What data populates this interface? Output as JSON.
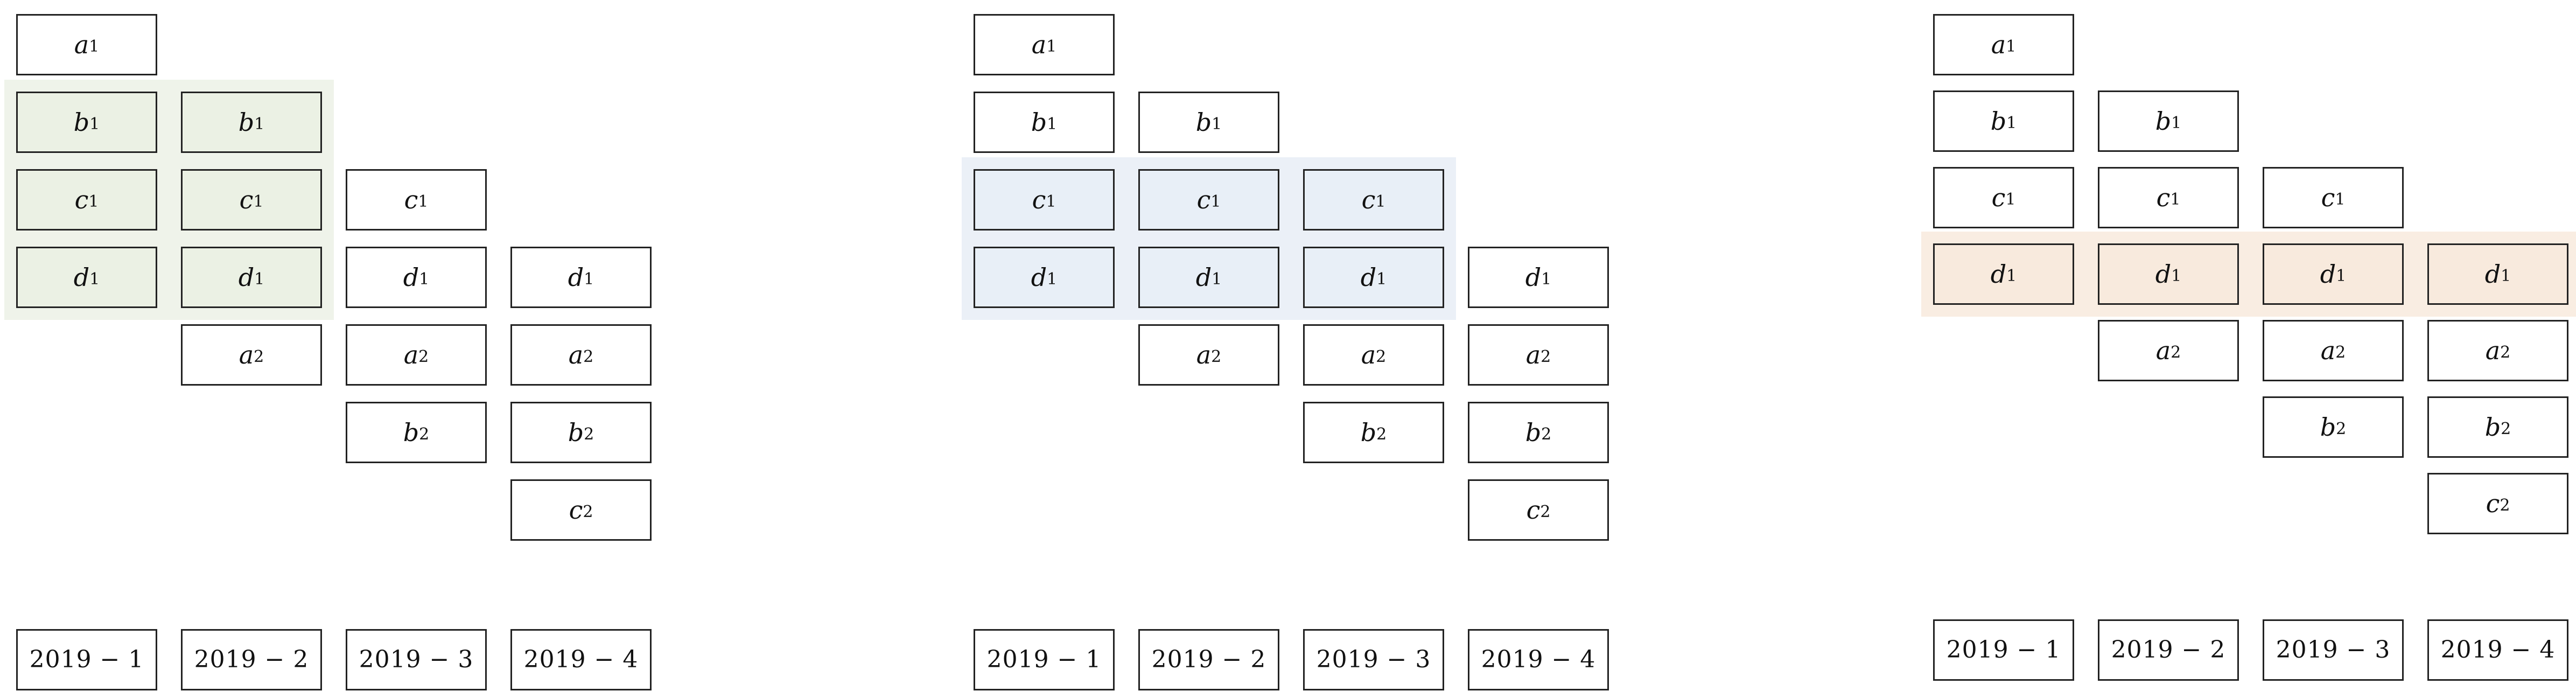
{
  "colors": {
    "green_fill": "#EBF1E4",
    "green_band": "#EFF3EA",
    "blue_fill": "#E8EFF7",
    "blue_band": "#EBF0F7",
    "orange_fill": "#F8EADD",
    "orange_band": "#F9EDE2",
    "border": "#222222"
  },
  "panels": [
    {
      "highlight": {
        "color": "green",
        "columns": [
          1,
          2
        ],
        "rows": [
          "b",
          "c",
          "d"
        ]
      },
      "columns": [
        {
          "period": "2019 − 1",
          "cells": [
            {
              "l": "a",
              "s": "1"
            },
            {
              "l": "b",
              "s": "1"
            },
            {
              "l": "c",
              "s": "1"
            },
            {
              "l": "d",
              "s": "1"
            }
          ]
        },
        {
          "period": "2019 − 2",
          "cells": [
            {
              "l": "b",
              "s": "1"
            },
            {
              "l": "c",
              "s": "1"
            },
            {
              "l": "d",
              "s": "1"
            },
            {
              "l": "a",
              "s": "2"
            }
          ]
        },
        {
          "period": "2019 − 3",
          "cells": [
            {
              "l": "c",
              "s": "1"
            },
            {
              "l": "d",
              "s": "1"
            },
            {
              "l": "a",
              "s": "2"
            },
            {
              "l": "b",
              "s": "2"
            }
          ]
        },
        {
          "period": "2019 − 4",
          "cells": [
            {
              "l": "d",
              "s": "1"
            },
            {
              "l": "a",
              "s": "2"
            },
            {
              "l": "b",
              "s": "2"
            },
            {
              "l": "c",
              "s": "2"
            }
          ]
        }
      ]
    },
    {
      "highlight": {
        "color": "blue",
        "columns": [
          1,
          2,
          3
        ],
        "rows": [
          "c",
          "d"
        ]
      },
      "columns": [
        {
          "period": "2019 − 1",
          "cells": [
            {
              "l": "a",
              "s": "1"
            },
            {
              "l": "b",
              "s": "1"
            },
            {
              "l": "c",
              "s": "1"
            },
            {
              "l": "d",
              "s": "1"
            }
          ]
        },
        {
          "period": "2019 − 2",
          "cells": [
            {
              "l": "b",
              "s": "1"
            },
            {
              "l": "c",
              "s": "1"
            },
            {
              "l": "d",
              "s": "1"
            },
            {
              "l": "a",
              "s": "2"
            }
          ]
        },
        {
          "period": "2019 − 3",
          "cells": [
            {
              "l": "c",
              "s": "1"
            },
            {
              "l": "d",
              "s": "1"
            },
            {
              "l": "a",
              "s": "2"
            },
            {
              "l": "b",
              "s": "2"
            }
          ]
        },
        {
          "period": "2019 − 4",
          "cells": [
            {
              "l": "d",
              "s": "1"
            },
            {
              "l": "a",
              "s": "2"
            },
            {
              "l": "b",
              "s": "2"
            },
            {
              "l": "c",
              "s": "2"
            }
          ]
        }
      ]
    },
    {
      "highlight": {
        "color": "orange",
        "columns": [
          1,
          2,
          3,
          4
        ],
        "rows": [
          "d"
        ]
      },
      "columns": [
        {
          "period": "2019 − 1",
          "cells": [
            {
              "l": "a",
              "s": "1"
            },
            {
              "l": "b",
              "s": "1"
            },
            {
              "l": "c",
              "s": "1"
            },
            {
              "l": "d",
              "s": "1"
            }
          ]
        },
        {
          "period": "2019 − 2",
          "cells": [
            {
              "l": "b",
              "s": "1"
            },
            {
              "l": "c",
              "s": "1"
            },
            {
              "l": "d",
              "s": "1"
            },
            {
              "l": "a",
              "s": "2"
            }
          ]
        },
        {
          "period": "2019 − 3",
          "cells": [
            {
              "l": "c",
              "s": "1"
            },
            {
              "l": "d",
              "s": "1"
            },
            {
              "l": "a",
              "s": "2"
            },
            {
              "l": "b",
              "s": "2"
            }
          ]
        },
        {
          "period": "2019 − 4",
          "cells": [
            {
              "l": "d",
              "s": "1"
            },
            {
              "l": "a",
              "s": "2"
            },
            {
              "l": "b",
              "s": "2"
            },
            {
              "l": "c",
              "s": "2"
            }
          ]
        }
      ]
    }
  ]
}
